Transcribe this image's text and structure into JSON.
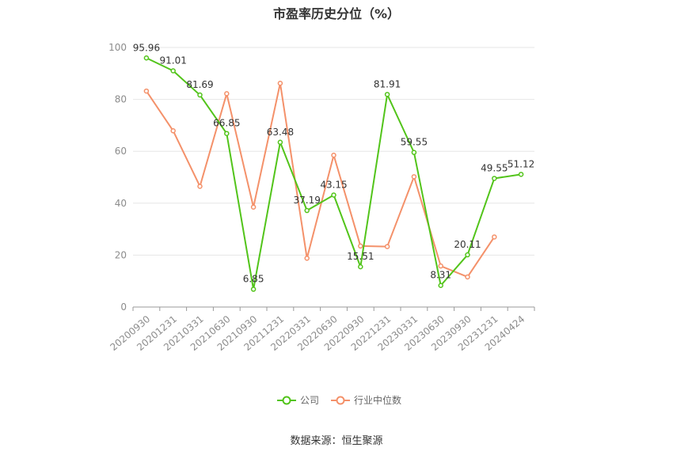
{
  "chart_data": {
    "type": "line",
    "title": "市盈率历史分位（%）",
    "categories": [
      "20200930",
      "20201231",
      "20210331",
      "20210630",
      "20210930",
      "20211231",
      "20220331",
      "20220630",
      "20220930",
      "20221231",
      "20230331",
      "20230630",
      "20230930",
      "20231231",
      "20240424"
    ],
    "series": [
      {
        "name": "公司",
        "color": "#52c41a",
        "values": [
          95.96,
          91.01,
          81.69,
          66.85,
          6.85,
          63.48,
          37.19,
          43.15,
          15.51,
          81.91,
          59.55,
          8.31,
          20.11,
          49.55,
          51.12
        ],
        "labels": [
          "95.96",
          "91.01",
          "81.69",
          "66.85",
          "6.85",
          "63.48",
          "37.19",
          "43.15",
          "15.51",
          "81.91",
          "59.55",
          "8.31",
          "20.11",
          "49.55",
          "51.12"
        ]
      },
      {
        "name": "行业中位数",
        "color": "#f4916a",
        "values": [
          83.2,
          67.9,
          46.5,
          82.2,
          38.5,
          86.2,
          18.8,
          58.5,
          23.5,
          23.3,
          50.2,
          15.8,
          11.6,
          27.0,
          null
        ]
      }
    ],
    "yticks": [
      "0",
      "20",
      "40",
      "60",
      "80",
      "100"
    ],
    "ylim": [
      0,
      100
    ],
    "grid": true,
    "legend_position": "bottom"
  },
  "source": "数据来源：恒生聚源"
}
